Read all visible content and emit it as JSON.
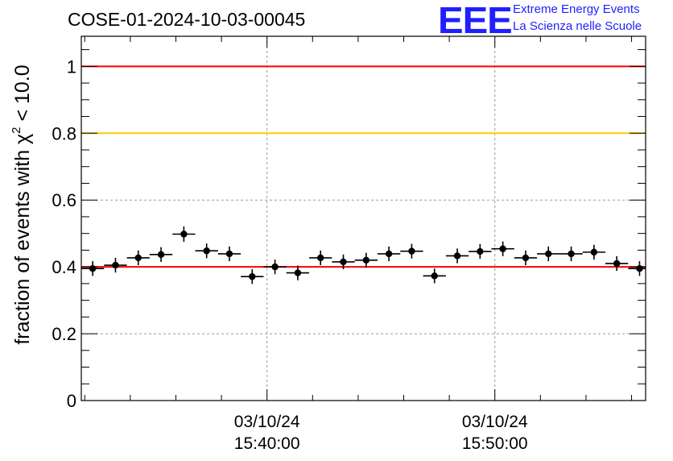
{
  "header": {
    "run_title": "COSE-01-2024-10-03-00045",
    "logo_mark": "EEE",
    "logo_line1": "Extreme Energy Events",
    "logo_line2": "La Scienza nelle Scuole"
  },
  "colors": {
    "threshold_red": "#ff0000",
    "threshold_yellow": "#ffcc00",
    "marker": "#000000",
    "logo_blue": "#1f1fff"
  },
  "chart_data": {
    "type": "scatter",
    "title": "COSE-01-2024-10-03-00045",
    "xlabel": "",
    "ylabel": "fraction of events with χ² < 10.0",
    "ylabel_parts": {
      "prefix": "fraction of events with ",
      "symbol": "χ",
      "superscript": "2",
      "suffix": " < 10.0"
    },
    "xlim": [
      "15:31:51",
      "15:56:37"
    ],
    "ylim": [
      0,
      1.09
    ],
    "yticks": [
      0,
      0.2,
      0.4,
      0.6,
      0.8,
      1
    ],
    "ytick_labels": [
      "0",
      "0.2",
      "0.4",
      "0.6",
      "0.8",
      "1"
    ],
    "xticks": [
      {
        "time": "15:40:00",
        "label_date": "03/10/24",
        "label_time": "15:40:00"
      },
      {
        "time": "15:50:00",
        "label_date": "03/10/24",
        "label_time": "15:50:00"
      }
    ],
    "grid": true,
    "reference_lines": [
      {
        "y": 1.0,
        "color": "#ff0000"
      },
      {
        "y": 0.8,
        "color": "#ffcc00"
      },
      {
        "y": 0.4,
        "color": "#ff0000"
      }
    ],
    "x_bin_halfwidth_seconds": 30,
    "series": [
      {
        "x": [
          "15:32:21",
          "15:33:21",
          "15:34:21",
          "15:35:21",
          "15:36:21",
          "15:37:21",
          "15:38:21",
          "15:39:21",
          "15:40:21",
          "15:41:21",
          "15:42:21",
          "15:43:21",
          "15:44:21",
          "15:45:21",
          "15:46:21",
          "15:47:21",
          "15:48:21",
          "15:49:21",
          "15:50:21",
          "15:51:21",
          "15:52:21",
          "15:53:21",
          "15:54:21",
          "15:55:21",
          "15:56:21"
        ],
        "values": [
          0.395,
          0.405,
          0.427,
          0.437,
          0.498,
          0.448,
          0.439,
          0.371,
          0.4,
          0.382,
          0.427,
          0.415,
          0.42,
          0.439,
          0.447,
          0.373,
          0.433,
          0.446,
          0.454,
          0.427,
          0.439,
          0.439,
          0.444,
          0.41,
          0.395
        ],
        "errors": [
          0.022,
          0.022,
          0.022,
          0.022,
          0.023,
          0.022,
          0.022,
          0.022,
          0.022,
          0.022,
          0.022,
          0.022,
          0.022,
          0.022,
          0.022,
          0.022,
          0.022,
          0.022,
          0.022,
          0.022,
          0.022,
          0.022,
          0.022,
          0.022,
          0.022
        ]
      }
    ]
  }
}
